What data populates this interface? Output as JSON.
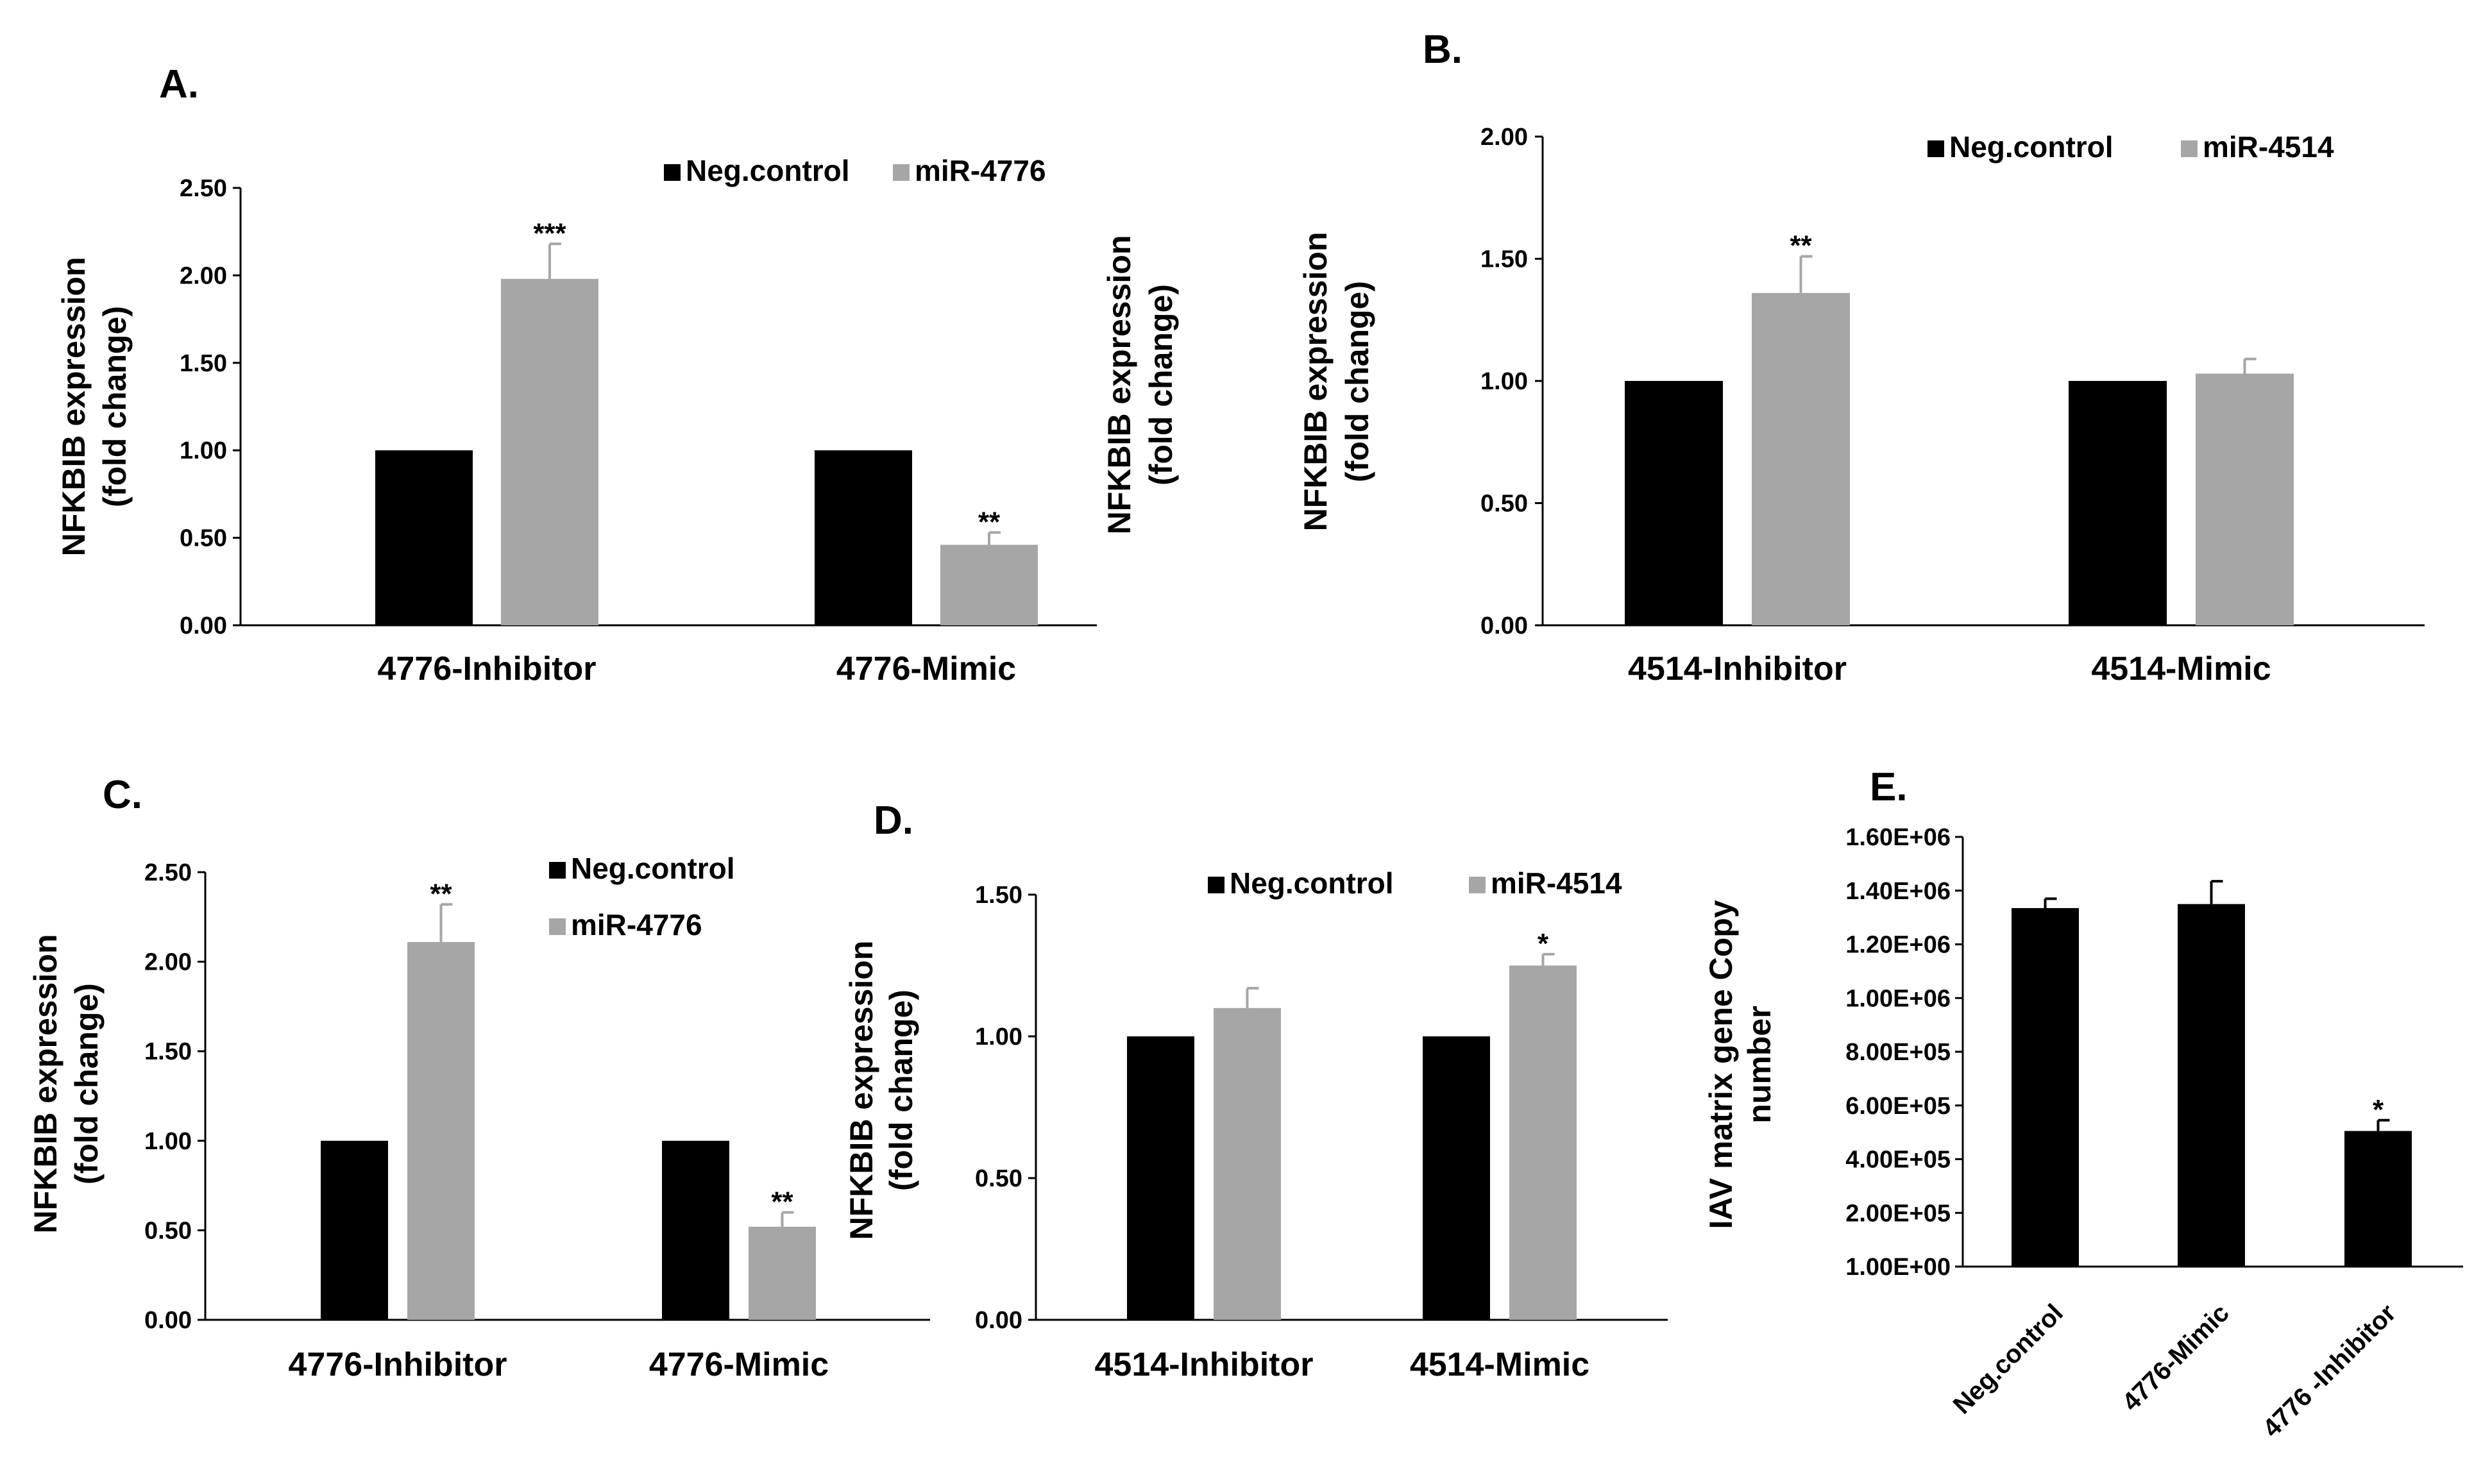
{
  "panels": [
    {
      "id": "A",
      "letter": "A.",
      "type": "bar",
      "ylabel": "NFKBIB expression",
      "ylabel2": "(fold change)",
      "ylim": [
        0,
        2.5
      ],
      "yticks": [
        "0.00",
        "0.50",
        "1.00",
        "1.50",
        "2.00",
        "2.50"
      ],
      "categories": [
        "4776-Inhibitor",
        "4776-Mimic"
      ],
      "series": [
        {
          "name": "Neg.control",
          "color": "#000000",
          "values": [
            1.0,
            1.0
          ],
          "errors": [
            0,
            0
          ],
          "sig": [
            "",
            ""
          ]
        },
        {
          "name": "miR-4776",
          "color": "#a6a6a6",
          "values": [
            1.98,
            0.46
          ],
          "errors": [
            0.2,
            0.07
          ],
          "sig": [
            "***",
            "**"
          ]
        }
      ]
    },
    {
      "id": "B",
      "letter": "B.",
      "type": "bar",
      "ylabel": "NFKBIB expression",
      "ylabel2": "(fold change)",
      "ylim": [
        0,
        2.0
      ],
      "yticks": [
        "0.00",
        "0.50",
        "1.00",
        "1.50",
        "2.00"
      ],
      "categories": [
        "4514-Inhibitor",
        "4514-Mimic"
      ],
      "series": [
        {
          "name": "Neg.control",
          "color": "#000000",
          "values": [
            1.0,
            1.0
          ],
          "errors": [
            0,
            0
          ],
          "sig": [
            "",
            ""
          ]
        },
        {
          "name": "miR-4514",
          "color": "#a6a6a6",
          "values": [
            1.36,
            1.03
          ],
          "errors": [
            0.15,
            0.06
          ],
          "sig": [
            "**",
            ""
          ]
        }
      ]
    },
    {
      "id": "C",
      "letter": "C.",
      "type": "bar",
      "ylabel": "NFKBIB expression",
      "ylabel2": "(fold change)",
      "ylim": [
        0,
        2.5
      ],
      "yticks": [
        "0.00",
        "0.50",
        "1.00",
        "1.50",
        "2.00",
        "2.50"
      ],
      "categories": [
        "4776-Inhibitor",
        "4776-Mimic"
      ],
      "series": [
        {
          "name": "Neg.control",
          "color": "#000000",
          "values": [
            1.0,
            1.0
          ],
          "errors": [
            0,
            0
          ],
          "sig": [
            "",
            ""
          ]
        },
        {
          "name": "miR-4776",
          "color": "#a6a6a6",
          "values": [
            2.11,
            0.52
          ],
          "errors": [
            0.21,
            0.08
          ],
          "sig": [
            "**",
            "**"
          ]
        }
      ]
    },
    {
      "id": "D",
      "letter": "D.",
      "type": "bar",
      "ylabel": "NFKBIB expression",
      "ylabel2": "(fold change)",
      "ylim": [
        0,
        1.5
      ],
      "yticks": [
        "0.00",
        "0.50",
        "1.00",
        "1.50"
      ],
      "categories": [
        "4514-Inhibitor",
        "4514-Mimic"
      ],
      "series": [
        {
          "name": "Neg.control",
          "color": "#000000",
          "values": [
            1.0,
            1.0
          ],
          "errors": [
            0,
            0
          ],
          "sig": [
            "",
            ""
          ]
        },
        {
          "name": "miR-4514",
          "color": "#a6a6a6",
          "values": [
            1.1,
            1.25
          ],
          "errors": [
            0.07,
            0.04
          ],
          "sig": [
            "",
            "*"
          ]
        }
      ]
    },
    {
      "id": "E",
      "letter": "E.",
      "type": "bar",
      "ylabel": "IAV matrix gene Copy",
      "ylabel2": "number",
      "ylim": [
        1,
        1600000
      ],
      "yticks": [
        "1.00E+00",
        "2.00E+05",
        "4.00E+05",
        "6.00E+05",
        "8.00E+05",
        "1.00E+06",
        "1.20E+06",
        "1.40E+06",
        "1.60E+06"
      ],
      "categories": [
        "Neg.control",
        "4776-Mimic",
        "4776 -Inhibitor"
      ],
      "series": [
        {
          "name": "",
          "color": "#000000",
          "values": [
            1335000,
            1350000,
            505000
          ],
          "errors": [
            35000,
            85000,
            40000
          ],
          "sig": [
            "",
            "",
            "*"
          ]
        }
      ]
    }
  ]
}
